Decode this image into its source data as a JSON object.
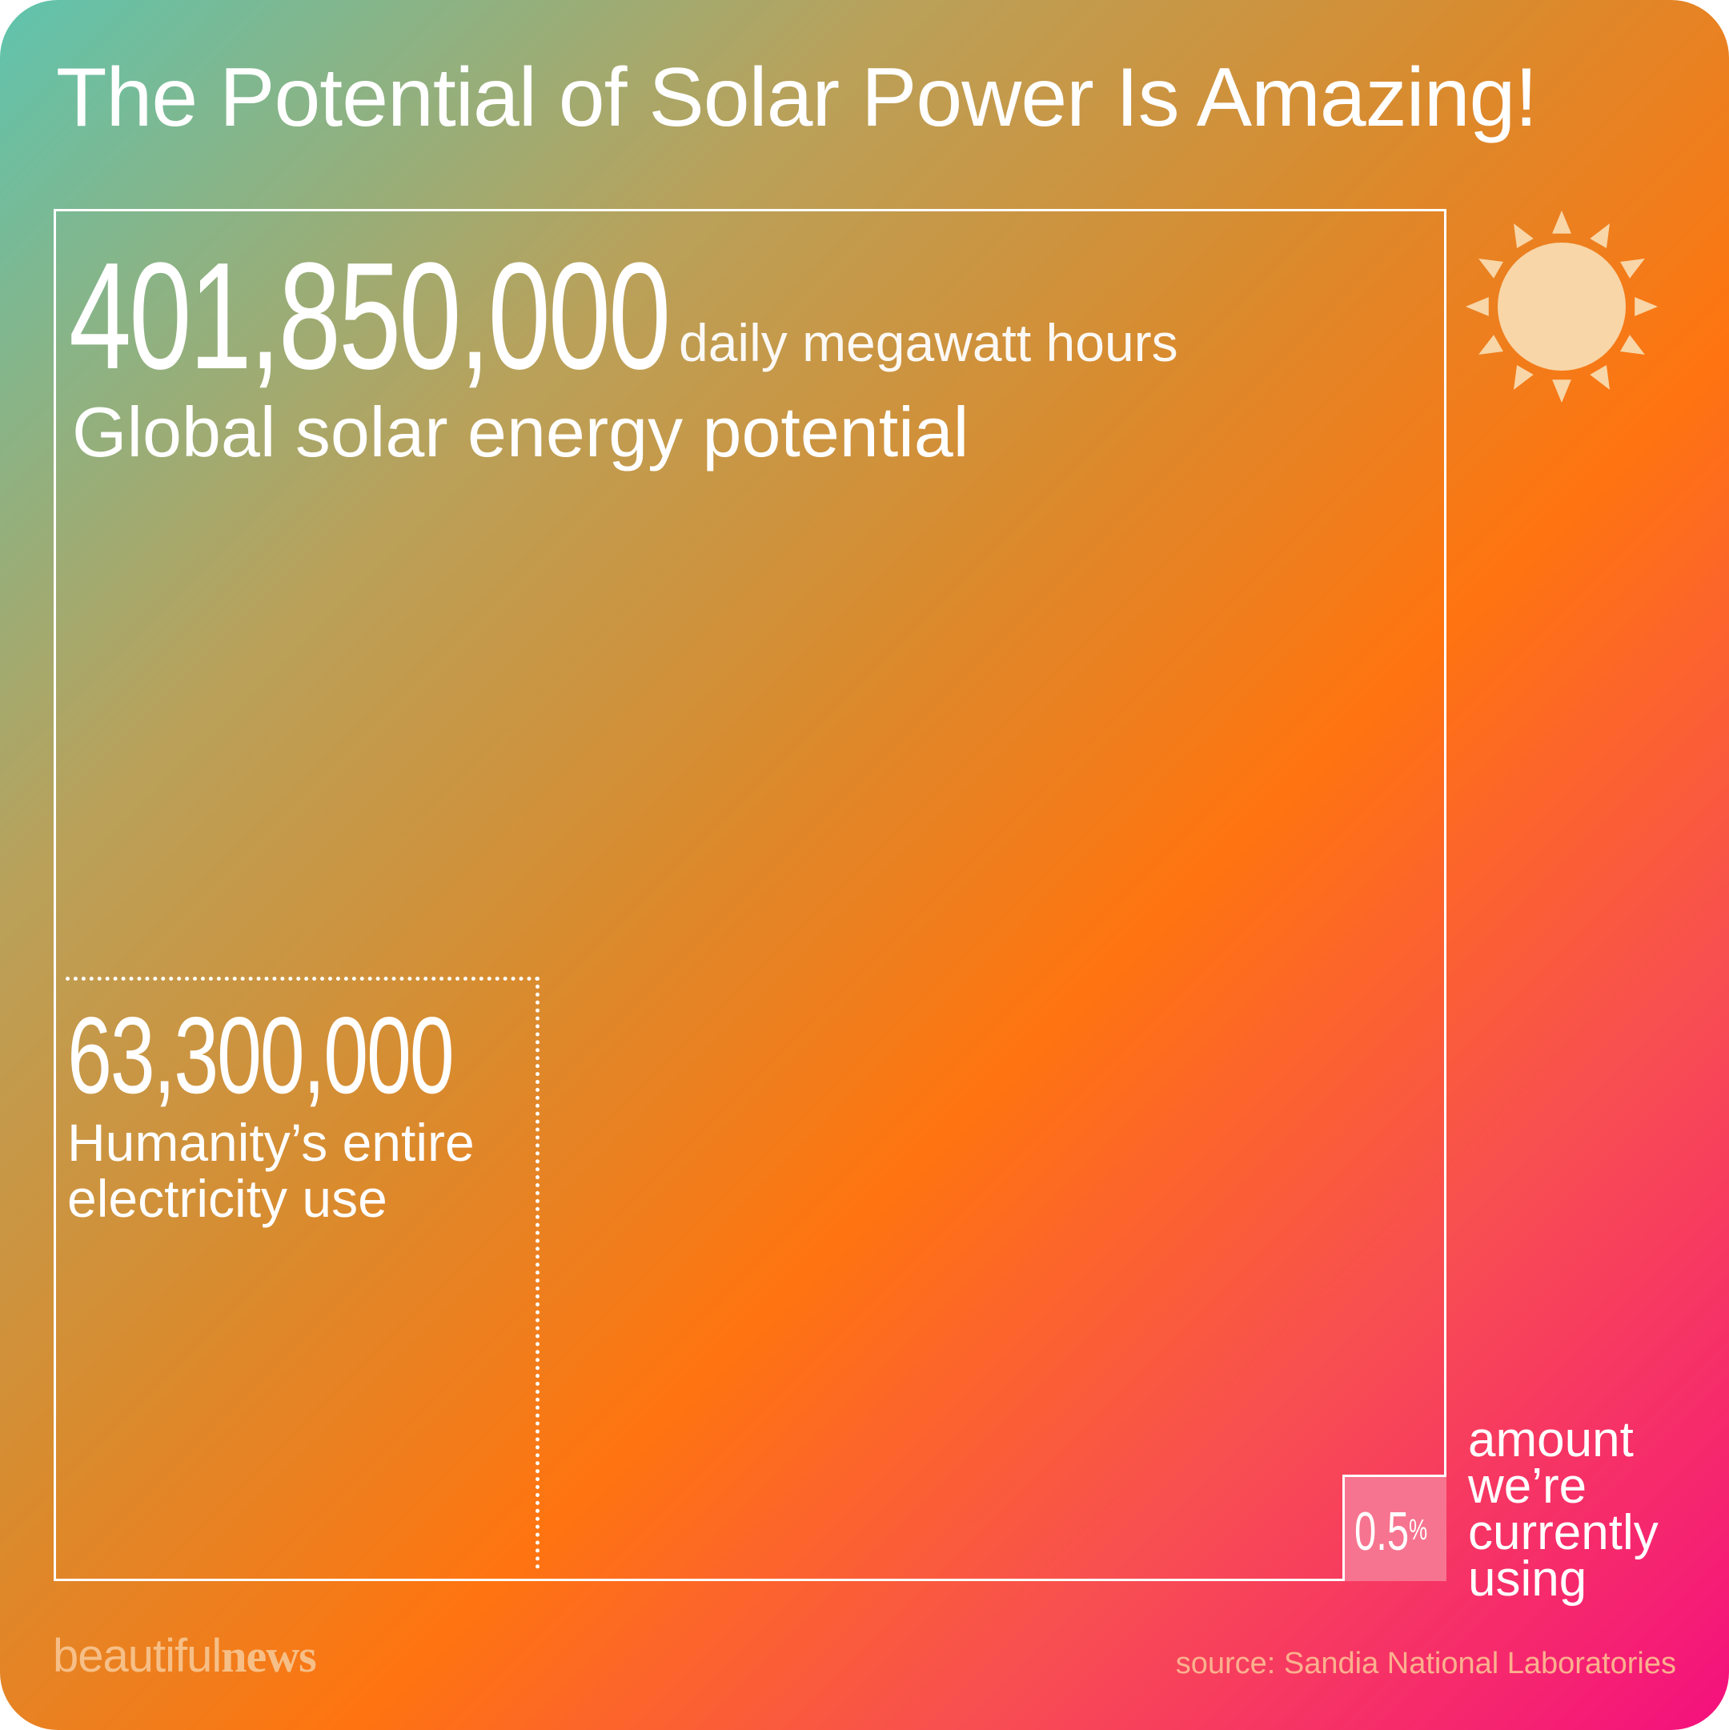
{
  "title": "The Potential of Solar Power Is Amazing!",
  "chart_data": {
    "type": "nested-square",
    "title": "The Potential of Solar Power Is Amazing!",
    "unit": "daily megawatt hours",
    "items": [
      {
        "label": "Global solar energy potential",
        "value_text": "401,850,000",
        "value": 401850000
      },
      {
        "label": "Humanity’s entire electricity use",
        "value_text": "63,300,000",
        "value": 63300000
      },
      {
        "label": "amount we’re currently using",
        "value_text": "0.5",
        "value_suffix": "%",
        "value": 0.5
      }
    ]
  },
  "logo": {
    "part1": "beautiful",
    "part2": "news"
  },
  "source": "source: Sandia National Laboratories",
  "colors": {
    "gradient_start": "#5fc4ae",
    "gradient_mid": "#ff7410",
    "gradient_end": "#f4107e",
    "sun": "#f8d6a8",
    "small_box": "#f6748f"
  },
  "icons": {
    "sun": "sun-icon"
  }
}
